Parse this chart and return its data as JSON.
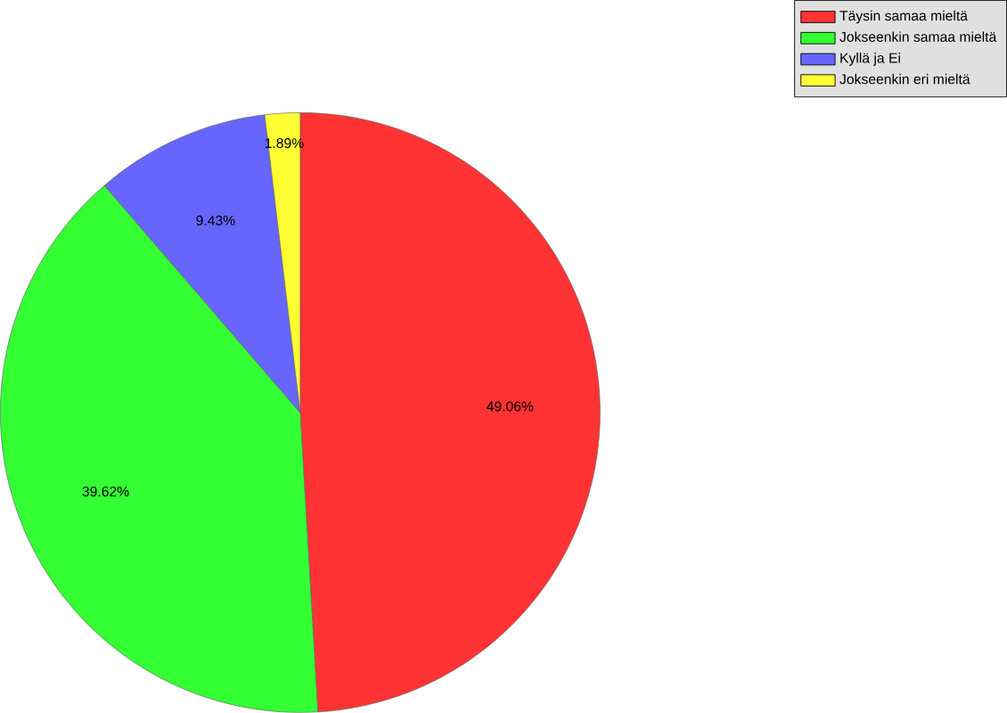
{
  "chart_data": {
    "type": "pie",
    "categories": [
      "Täysin samaa mieltä",
      "Jokseenkin samaa mieltä",
      "Kyllä ja Ei",
      "Jokseenkin eri mieltä"
    ],
    "values": [
      49.06,
      39.62,
      9.43,
      1.89
    ],
    "value_labels": [
      "49.06%",
      "39.62%",
      "9.43%",
      "1.89%"
    ],
    "colors": [
      "#ff3333",
      "#33ff33",
      "#6666ff",
      "#ffff33"
    ],
    "legend": "top right"
  }
}
